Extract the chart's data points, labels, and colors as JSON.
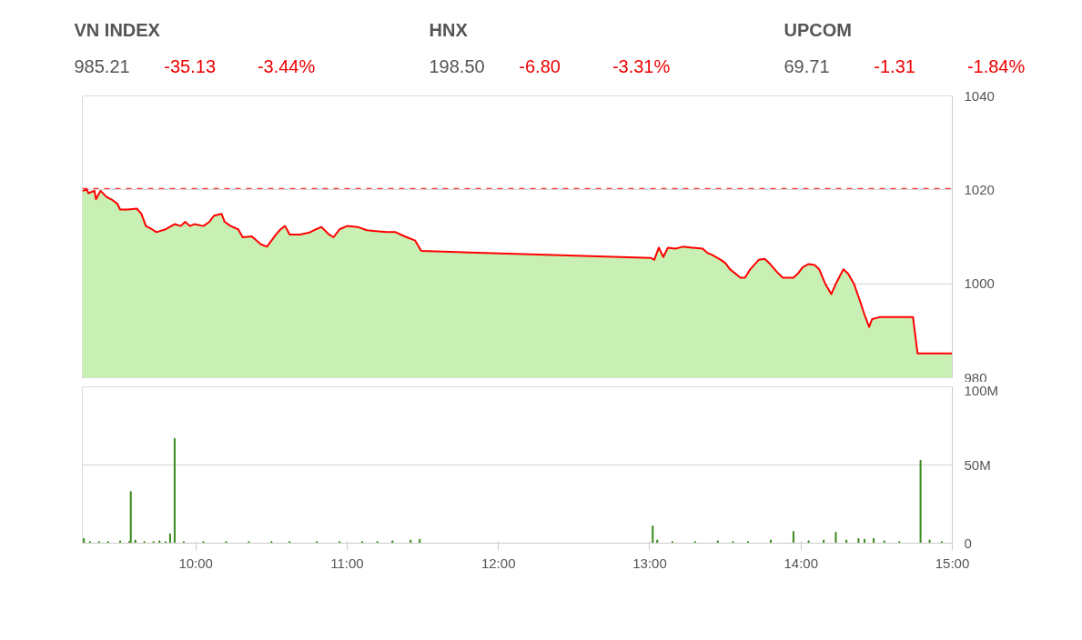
{
  "chart_data": [
    {
      "type": "other",
      "title": "VN INDEX",
      "annotations": [
        "985.21",
        "-35.13",
        "-3.44%"
      ]
    },
    {
      "type": "other",
      "title": "HNX",
      "annotations": [
        "198.50",
        "-6.80",
        "-3.31%"
      ]
    },
    {
      "type": "other",
      "title": "UPCOM",
      "annotations": [
        "69.71",
        "-1.31",
        "-1.84%"
      ]
    },
    {
      "type": "area",
      "xlim": [
        9.25,
        15
      ],
      "ylim": [
        980,
        1040
      ],
      "yticks": [
        980,
        1000,
        1020,
        1040
      ],
      "tick_labels": "y",
      "grid": "y",
      "ref_lines": [
        {
          "axis": "y",
          "value": 1020.3,
          "color": "#ff0000",
          "line_style": "dashed"
        }
      ],
      "series": [
        {
          "color": "#c8f0b4",
          "x": [
            9.25,
            9.28,
            9.29,
            9.33,
            9.34,
            9.37,
            9.41,
            9.45,
            9.48,
            9.5,
            9.55,
            9.61,
            9.64,
            9.67,
            9.71,
            9.74,
            9.8,
            9.86,
            9.9,
            9.93,
            9.96,
            9.99,
            10.05,
            10.09,
            10.12,
            10.17,
            10.19,
            10.23,
            10.28,
            10.31,
            10.37,
            10.43,
            10.47,
            10.5,
            10.53,
            10.56,
            10.59,
            10.62,
            10.69,
            10.75,
            10.78,
            10.83,
            10.88,
            10.91,
            10.95,
            11.0,
            11.07,
            11.13,
            11.19,
            11.26,
            11.32,
            11.38,
            11.45,
            11.49,
            13.01,
            13.03,
            13.06,
            13.09,
            13.12,
            13.17,
            13.22,
            13.28,
            13.35,
            13.38,
            13.41,
            13.47,
            13.5,
            13.53,
            13.6,
            13.63,
            13.66,
            13.72,
            13.76,
            13.79,
            13.85,
            13.88,
            13.95,
            13.98,
            14.01,
            14.05,
            14.09,
            14.12,
            14.16,
            14.2,
            14.23,
            14.28,
            14.31,
            14.35,
            14.39,
            14.42,
            14.45,
            14.47,
            14.52,
            14.55,
            14.74,
            14.77,
            15.0
          ],
          "values": [
            1019.8,
            1020.0,
            1019.3,
            1019.8,
            1018.0,
            1019.8,
            1018.5,
            1017.8,
            1017.1,
            1015.8,
            1015.8,
            1016.0,
            1014.9,
            1012.3,
            1011.6,
            1011.0,
            1011.6,
            1012.7,
            1012.3,
            1013.2,
            1012.3,
            1012.7,
            1012.3,
            1013.2,
            1014.5,
            1014.9,
            1013.2,
            1012.3,
            1011.6,
            1009.9,
            1010.1,
            1008.4,
            1007.9,
            1009.2,
            1010.5,
            1011.6,
            1012.3,
            1010.5,
            1010.5,
            1010.9,
            1011.4,
            1012.1,
            1010.5,
            1009.9,
            1011.6,
            1012.3,
            1012.1,
            1011.4,
            1011.2,
            1011.0,
            1011.0,
            1010.1,
            1009.2,
            1007.0,
            1005.5,
            1005.1,
            1007.7,
            1005.7,
            1007.7,
            1007.5,
            1007.9,
            1007.7,
            1007.5,
            1006.6,
            1006.2,
            1005.1,
            1004.4,
            1003.1,
            1001.3,
            1001.3,
            1002.9,
            1005.1,
            1005.3,
            1004.4,
            1002.2,
            1001.3,
            1001.3,
            1002.2,
            1003.5,
            1004.2,
            1004.0,
            1003.1,
            1000.0,
            997.8,
            1000.0,
            1003.1,
            1002.2,
            1000.0,
            996.3,
            993.4,
            990.8,
            992.5,
            992.9,
            992.9,
            992.9,
            985.2,
            985.2
          ]
        },
        {
          "type": "line",
          "color": "#ff0000",
          "x": [
            9.25,
            9.28,
            9.29,
            9.33,
            9.34,
            9.37,
            9.41,
            9.45,
            9.48,
            9.5,
            9.55,
            9.61,
            9.64,
            9.67,
            9.71,
            9.74,
            9.8,
            9.86,
            9.9,
            9.93,
            9.96,
            9.99,
            10.05,
            10.09,
            10.12,
            10.17,
            10.19,
            10.23,
            10.28,
            10.31,
            10.37,
            10.43,
            10.47,
            10.5,
            10.53,
            10.56,
            10.59,
            10.62,
            10.69,
            10.75,
            10.78,
            10.83,
            10.88,
            10.91,
            10.95,
            11.0,
            11.07,
            11.13,
            11.19,
            11.26,
            11.32,
            11.38,
            11.45,
            11.49,
            13.01,
            13.03,
            13.06,
            13.09,
            13.12,
            13.17,
            13.22,
            13.28,
            13.35,
            13.38,
            13.41,
            13.47,
            13.5,
            13.53,
            13.6,
            13.63,
            13.66,
            13.72,
            13.76,
            13.79,
            13.85,
            13.88,
            13.95,
            13.98,
            14.01,
            14.05,
            14.09,
            14.12,
            14.16,
            14.2,
            14.23,
            14.28,
            14.31,
            14.35,
            14.39,
            14.42,
            14.45,
            14.47,
            14.52,
            14.55,
            14.74,
            14.77,
            15.0
          ],
          "values": [
            1019.8,
            1020.0,
            1019.3,
            1019.8,
            1018.0,
            1019.8,
            1018.5,
            1017.8,
            1017.1,
            1015.8,
            1015.8,
            1016.0,
            1014.9,
            1012.3,
            1011.6,
            1011.0,
            1011.6,
            1012.7,
            1012.3,
            1013.2,
            1012.3,
            1012.7,
            1012.3,
            1013.2,
            1014.5,
            1014.9,
            1013.2,
            1012.3,
            1011.6,
            1009.9,
            1010.1,
            1008.4,
            1007.9,
            1009.2,
            1010.5,
            1011.6,
            1012.3,
            1010.5,
            1010.5,
            1010.9,
            1011.4,
            1012.1,
            1010.5,
            1009.9,
            1011.6,
            1012.3,
            1012.1,
            1011.4,
            1011.2,
            1011.0,
            1011.0,
            1010.1,
            1009.2,
            1007.0,
            1005.5,
            1005.1,
            1007.7,
            1005.7,
            1007.7,
            1007.5,
            1007.9,
            1007.7,
            1007.5,
            1006.6,
            1006.2,
            1005.1,
            1004.4,
            1003.1,
            1001.3,
            1001.3,
            1002.9,
            1005.1,
            1005.3,
            1004.4,
            1002.2,
            1001.3,
            1001.3,
            1002.2,
            1003.5,
            1004.2,
            1004.0,
            1003.1,
            1000.0,
            997.8,
            1000.0,
            1003.1,
            1002.2,
            1000.0,
            996.3,
            993.4,
            990.8,
            992.5,
            992.9,
            992.9,
            992.9,
            985.2,
            985.2
          ]
        }
      ]
    },
    {
      "type": "bar",
      "xlim": [
        9.25,
        15
      ],
      "ylim": [
        0,
        100
      ],
      "yticks": [
        {
          "value": 0,
          "label": "0"
        },
        {
          "value": 50,
          "label": "50M"
        },
        {
          "value": 100,
          "label": "100M"
        }
      ],
      "xticks": [
        {
          "value": 10,
          "label": "10:00"
        },
        {
          "value": 11,
          "label": "11:00"
        },
        {
          "value": 12,
          "label": "12:00"
        },
        {
          "value": 13,
          "label": "13:00"
        },
        {
          "value": 14,
          "label": "14:00"
        },
        {
          "value": 15,
          "label": "15:00"
        }
      ],
      "grid": "y",
      "series": [
        {
          "color": "#3a8a1c",
          "x": [
            9.26,
            9.3,
            9.36,
            9.42,
            9.5,
            9.56,
            9.57,
            9.6,
            9.66,
            9.72,
            9.76,
            9.8,
            9.83,
            9.86,
            9.92,
            10.05,
            10.2,
            10.35,
            10.5,
            10.62,
            10.8,
            10.95,
            11.1,
            11.2,
            11.3,
            11.42,
            11.48,
            13.02,
            13.05,
            13.15,
            13.3,
            13.45,
            13.55,
            13.65,
            13.8,
            13.95,
            14.05,
            14.15,
            14.23,
            14.3,
            14.38,
            14.42,
            14.48,
            14.55,
            14.65,
            14.79,
            14.85,
            14.93
          ],
          "values": [
            3,
            1,
            1,
            1,
            1.5,
            1,
            33,
            2,
            1,
            1,
            1.5,
            1,
            6,
            67,
            1,
            1,
            1,
            1,
            1,
            1,
            1,
            1,
            1,
            1,
            1.5,
            2,
            2.5,
            11,
            2,
            1,
            1,
            1.5,
            1,
            1,
            2,
            7.5,
            1.5,
            2,
            7,
            2,
            3,
            2.5,
            3,
            1.5,
            1,
            53,
            2,
            1
          ]
        }
      ]
    }
  ]
}
